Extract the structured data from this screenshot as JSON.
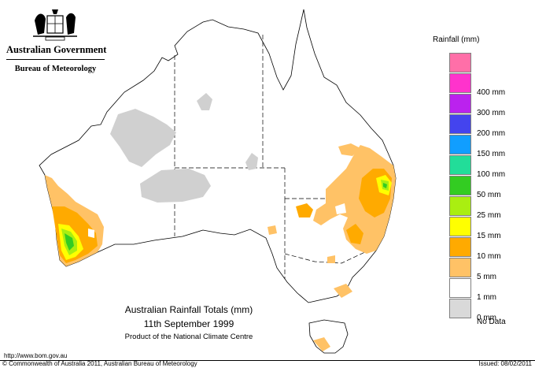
{
  "header": {
    "government": "Australian Government",
    "bureau": "Bureau of Meteorology",
    "crest_icon": "coat-of-arms-icon"
  },
  "map": {
    "title": "Australian Rainfall Totals (mm)",
    "date": "11th September 1999",
    "product": "Product of the National Climate Centre"
  },
  "legend": {
    "title": "Rainfall (mm)",
    "bins": [
      {
        "label": "",
        "color": "#ff6fa8"
      },
      {
        "label": "400 mm",
        "color": "#ff33cc"
      },
      {
        "label": "300 mm",
        "color": "#bb22ee"
      },
      {
        "label": "200 mm",
        "color": "#4444ee"
      },
      {
        "label": "150 mm",
        "color": "#119eff"
      },
      {
        "label": "100 mm",
        "color": "#22dd99"
      },
      {
        "label": "50 mm",
        "color": "#33cc22"
      },
      {
        "label": "25 mm",
        "color": "#aaee11"
      },
      {
        "label": "15 mm",
        "color": "#ffff00"
      },
      {
        "label": "10 mm",
        "color": "#ffaa00"
      },
      {
        "label": "5 mm",
        "color": "#ffc266"
      },
      {
        "label": "1 mm",
        "color": "#ffffff"
      },
      {
        "label": "0 mm",
        "color": "#d9d9d9"
      },
      {
        "label": "No Data",
        "color": ""
      }
    ]
  },
  "footer": {
    "url": "http://www.bom.gov.au",
    "copyright": "© Commonwealth of Australia 2011, Australian Bureau of Meteorology",
    "issued": "Issued: 08/02/2011"
  }
}
